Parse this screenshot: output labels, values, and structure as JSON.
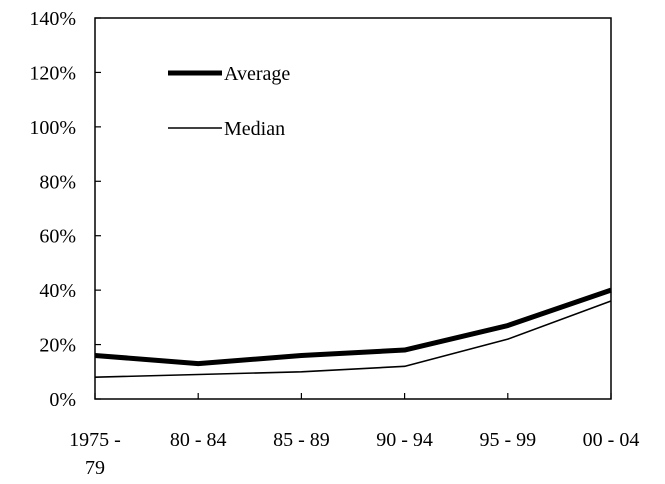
{
  "chart_data": {
    "type": "line",
    "categories": [
      "1975 - 79",
      "80 - 84",
      "85 - 89",
      "90 - 94",
      "95 - 99",
      "00 - 04"
    ],
    "category_labels": [
      [
        "1975 -",
        "79"
      ],
      [
        "80 - 84"
      ],
      [
        "85 - 89"
      ],
      [
        "90 - 94"
      ],
      [
        "95 - 99"
      ],
      [
        "00 - 04"
      ]
    ],
    "ylim": [
      0,
      140
    ],
    "y_ticks": [
      0,
      20,
      40,
      60,
      80,
      100,
      120,
      140
    ],
    "y_tick_labels": [
      "0%",
      "20%",
      "40%",
      "60%",
      "80%",
      "100%",
      "120%",
      "140%"
    ],
    "series": [
      {
        "name": "Average",
        "values": [
          16,
          13,
          16,
          18,
          27,
          40
        ],
        "color": "#000000",
        "style": "thick"
      },
      {
        "name": "Median",
        "values": [
          8,
          9,
          10,
          12,
          22,
          36
        ],
        "color": "#000000",
        "style": "thin"
      }
    ],
    "legend": {
      "position": "top-left"
    },
    "grid": false
  }
}
